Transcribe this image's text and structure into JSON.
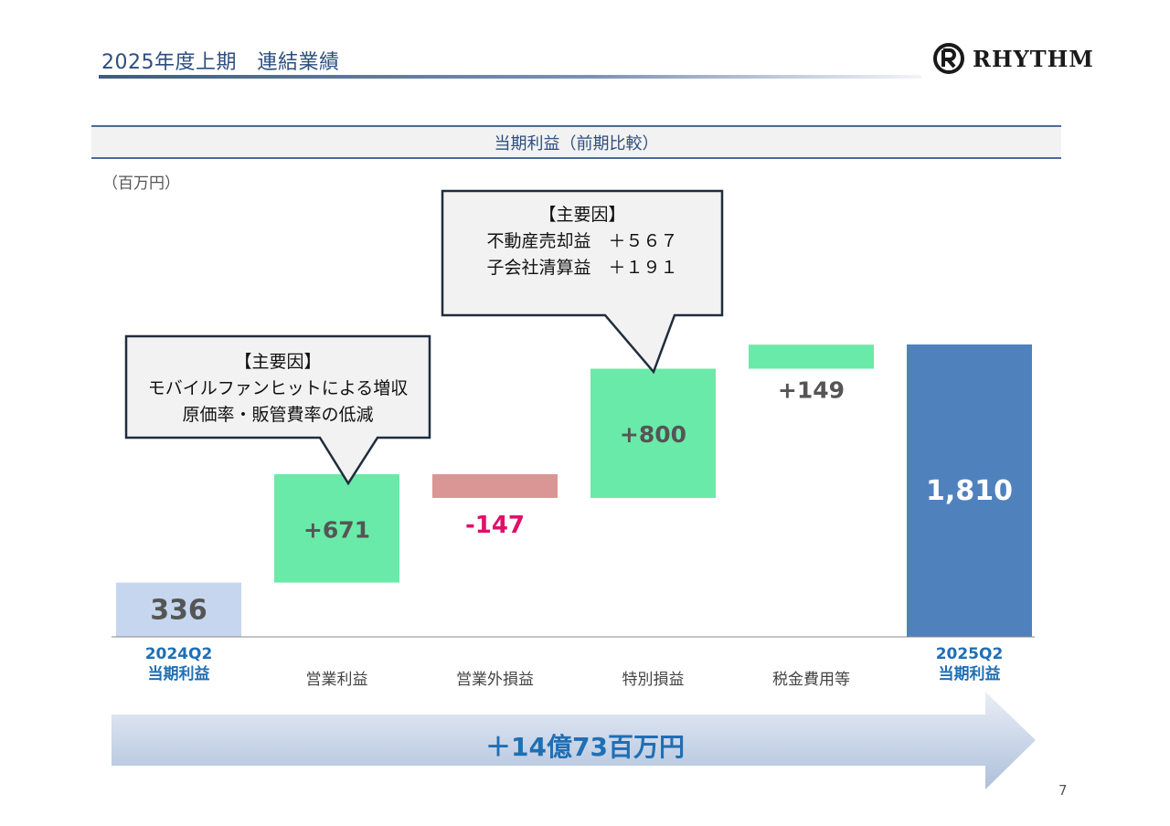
{
  "header": {
    "title": "2025年度上期　連結業績",
    "logo_text": "RHYTHM"
  },
  "chart_title": "当期利益（前期比較）",
  "unit_label": "（百万円）",
  "chart_data": {
    "type": "bar",
    "title": "当期利益（前期比較）",
    "categories": [
      "2024Q2 当期利益",
      "営業利益",
      "営業外損益",
      "特別損益",
      "税金費用等",
      "2025Q2 当期利益"
    ],
    "values": [
      336,
      671,
      -147,
      800,
      149,
      1810
    ],
    "value_labels": [
      "336",
      "+671",
      "-147",
      "+800",
      "+149",
      "1,810"
    ],
    "ylabel": "（百万円）",
    "colors": {
      "start": "#c5d6ee",
      "increase": "#6aeaa8",
      "decrease": "#d99694",
      "end": "#4f81bd"
    }
  },
  "categories_display": [
    {
      "line1": "2024Q2",
      "line2": "当期利益",
      "bold": true
    },
    {
      "line1": "営業利益",
      "line2": "",
      "bold": false
    },
    {
      "line1": "営業外損益",
      "line2": "",
      "bold": false
    },
    {
      "line1": "特別損益",
      "line2": "",
      "bold": false
    },
    {
      "line1": "税金費用等",
      "line2": "",
      "bold": false
    },
    {
      "line1": "2025Q2",
      "line2": "当期利益",
      "bold": true
    }
  ],
  "callouts": [
    {
      "lines": [
        "【主要因】",
        "モバイルファンヒットによる増収",
        "原価率・販管費率の低減"
      ]
    },
    {
      "lines": [
        "【主要因】",
        "不動産売却益　＋５６７",
        "子会社清算益　＋１９１"
      ]
    }
  ],
  "summary": {
    "text": "＋14億73百万円"
  },
  "page_number": "7"
}
